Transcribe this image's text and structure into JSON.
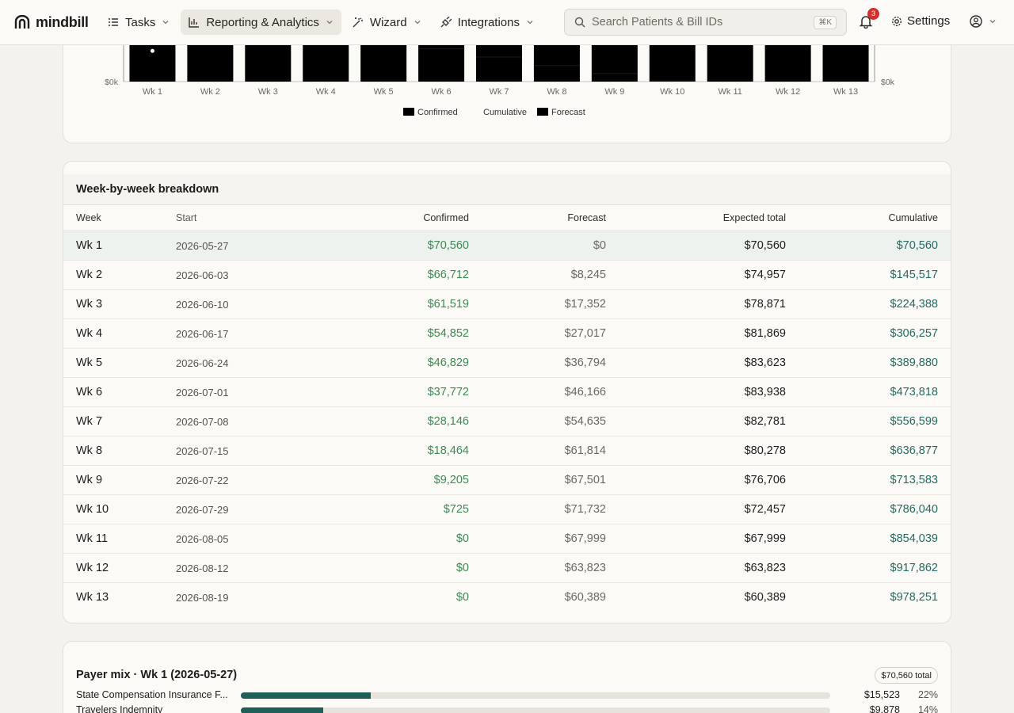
{
  "brand": "mindbill",
  "nav": [
    {
      "label": "Tasks",
      "icon": "list-icon"
    },
    {
      "label": "Reporting & Analytics",
      "icon": "bar-chart-icon"
    },
    {
      "label": "Wizard",
      "icon": "magic-wand-icon"
    },
    {
      "label": "Integrations",
      "icon": "plug-icon"
    }
  ],
  "search": {
    "placeholder": "Search Patients & Bill IDs",
    "shortcut": "⌘K"
  },
  "notifications": {
    "count": "3"
  },
  "settings_label": "Settings",
  "colors": {
    "accent": "#1f5f57",
    "confirmed_text": "#3a8a52",
    "cumulative_text": "#236a60",
    "badge": "#d92d2d"
  },
  "chart_data": {
    "type": "bar",
    "categories": [
      "Wk 1",
      "Wk 2",
      "Wk 3",
      "Wk 4",
      "Wk 5",
      "Wk 6",
      "Wk 7",
      "Wk 8",
      "Wk 9",
      "Wk 10",
      "Wk 11",
      "Wk 12",
      "Wk 13"
    ],
    "series": [
      {
        "name": "Confirmed",
        "values": [
          70560,
          66712,
          61519,
          54852,
          46829,
          37772,
          28146,
          18464,
          9205,
          725,
          0,
          0,
          0
        ]
      },
      {
        "name": "Forecast",
        "values": [
          0,
          8245,
          17352,
          27017,
          36794,
          46166,
          54635,
          61814,
          67501,
          71732,
          67999,
          63823,
          60389
        ]
      },
      {
        "name": "Cumulative",
        "values": [
          70560,
          145517,
          224388,
          306257,
          389880,
          473818,
          556599,
          636877,
          713583,
          786040,
          854039,
          917862,
          978251
        ]
      }
    ],
    "left_axis_label": "$0k",
    "right_axis_label": "$0k",
    "legend": [
      "Confirmed",
      "Cumulative",
      "Forecast"
    ],
    "legend_position": "bottom"
  },
  "table": {
    "title": "Week-by-week breakdown",
    "headers": {
      "week": "Week",
      "start": "Start",
      "confirmed": "Confirmed",
      "forecast": "Forecast",
      "expected": "Expected total",
      "cumulative": "Cumulative"
    },
    "rows": [
      {
        "week": "Wk 1",
        "start": "2026-05-27",
        "confirmed": "$70,560",
        "forecast": "$0",
        "expected": "$70,560",
        "cumulative": "$70,560"
      },
      {
        "week": "Wk 2",
        "start": "2026-06-03",
        "confirmed": "$66,712",
        "forecast": "$8,245",
        "expected": "$74,957",
        "cumulative": "$145,517"
      },
      {
        "week": "Wk 3",
        "start": "2026-06-10",
        "confirmed": "$61,519",
        "forecast": "$17,352",
        "expected": "$78,871",
        "cumulative": "$224,388"
      },
      {
        "week": "Wk 4",
        "start": "2026-06-17",
        "confirmed": "$54,852",
        "forecast": "$27,017",
        "expected": "$81,869",
        "cumulative": "$306,257"
      },
      {
        "week": "Wk 5",
        "start": "2026-06-24",
        "confirmed": "$46,829",
        "forecast": "$36,794",
        "expected": "$83,623",
        "cumulative": "$389,880"
      },
      {
        "week": "Wk 6",
        "start": "2026-07-01",
        "confirmed": "$37,772",
        "forecast": "$46,166",
        "expected": "$83,938",
        "cumulative": "$473,818"
      },
      {
        "week": "Wk 7",
        "start": "2026-07-08",
        "confirmed": "$28,146",
        "forecast": "$54,635",
        "expected": "$82,781",
        "cumulative": "$556,599"
      },
      {
        "week": "Wk 8",
        "start": "2026-07-15",
        "confirmed": "$18,464",
        "forecast": "$61,814",
        "expected": "$80,278",
        "cumulative": "$636,877"
      },
      {
        "week": "Wk 9",
        "start": "2026-07-22",
        "confirmed": "$9,205",
        "forecast": "$67,501",
        "expected": "$76,706",
        "cumulative": "$713,583"
      },
      {
        "week": "Wk 10",
        "start": "2026-07-29",
        "confirmed": "$725",
        "forecast": "$71,732",
        "expected": "$72,457",
        "cumulative": "$786,040"
      },
      {
        "week": "Wk 11",
        "start": "2026-08-05",
        "confirmed": "$0",
        "forecast": "$67,999",
        "expected": "$67,999",
        "cumulative": "$854,039"
      },
      {
        "week": "Wk 12",
        "start": "2026-08-12",
        "confirmed": "$0",
        "forecast": "$63,823",
        "expected": "$63,823",
        "cumulative": "$917,862"
      },
      {
        "week": "Wk 13",
        "start": "2026-08-19",
        "confirmed": "$0",
        "forecast": "$60,389",
        "expected": "$60,389",
        "cumulative": "$978,251"
      }
    ]
  },
  "payer_mix": {
    "title": "Payer mix · Wk 1 (2026-05-27)",
    "total": "$70,560 total",
    "rows": [
      {
        "name": "State Compensation Insurance F...",
        "amount": "$15,523",
        "pct": "22%",
        "share": 0.22
      },
      {
        "name": "Travelers Indemnity",
        "amount": "$9,878",
        "pct": "14%",
        "share": 0.14
      }
    ]
  }
}
